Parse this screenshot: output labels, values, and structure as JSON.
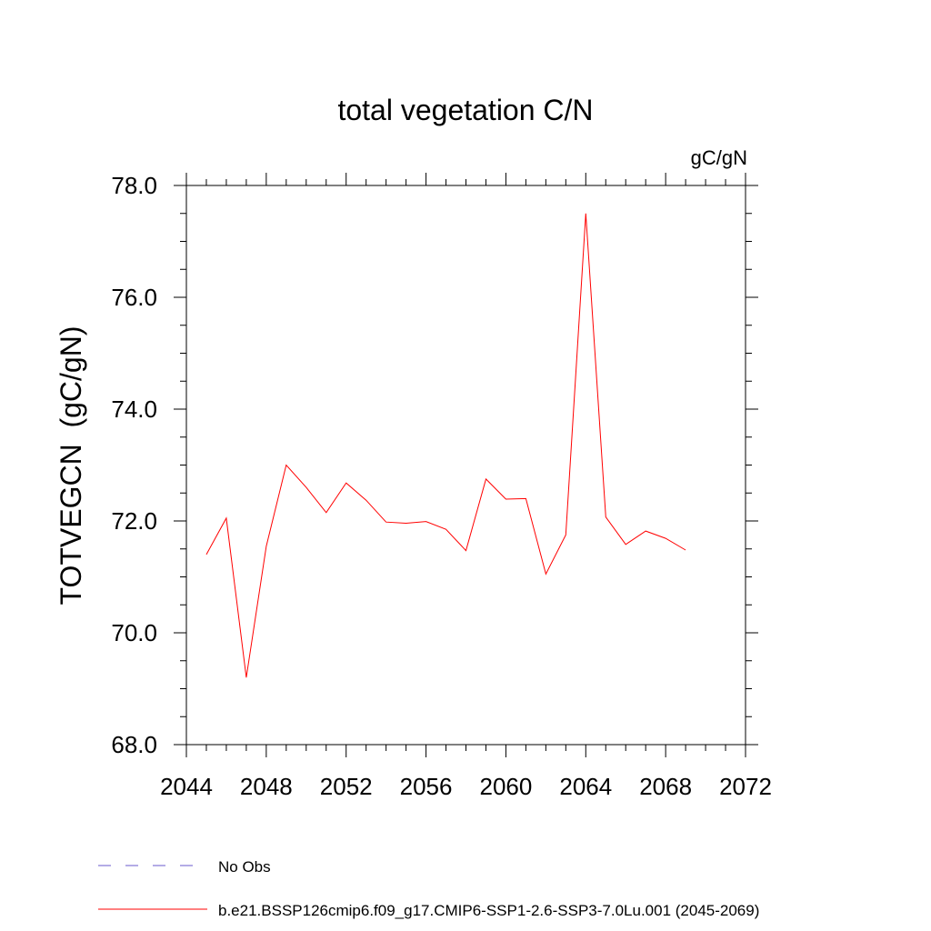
{
  "chart_data": {
    "type": "line",
    "title": "total vegetation C/N",
    "units_label": "gC/gN",
    "ylabel": "TOTVEGCN  (gC/gN)",
    "xlabel": "",
    "xlim": [
      2044,
      2072
    ],
    "ylim": [
      68.0,
      78.0
    ],
    "xticks": [
      2044,
      2048,
      2052,
      2056,
      2060,
      2064,
      2068,
      2072
    ],
    "yticks": [
      68.0,
      70.0,
      72.0,
      74.0,
      76.0,
      78.0
    ],
    "xtick_labels": [
      "2044",
      "2048",
      "2052",
      "2056",
      "2060",
      "2064",
      "2068",
      "2072"
    ],
    "ytick_labels": [
      "68.0",
      "70.0",
      "72.0",
      "74.0",
      "76.0",
      "78.0"
    ],
    "grid": false,
    "legend_position": "bottom-left",
    "series": [
      {
        "name": "No Obs",
        "color": "#6a5acd",
        "style": "dashed",
        "x": [],
        "y": []
      },
      {
        "name": "b.e21.BSSP126cmip6.f09_g17.CMIP6-SSP1-2.6-SSP3-7.0Lu.001 (2045-2069)",
        "color": "#ff0000",
        "style": "solid",
        "x": [
          2045,
          2046,
          2047,
          2048,
          2049,
          2050,
          2051,
          2052,
          2053,
          2054,
          2055,
          2056,
          2057,
          2058,
          2059,
          2060,
          2061,
          2062,
          2063,
          2064,
          2065,
          2066,
          2067,
          2068,
          2069
        ],
        "y": [
          71.4,
          72.05,
          69.2,
          71.55,
          73.0,
          72.6,
          72.15,
          72.68,
          72.37,
          71.98,
          71.96,
          71.99,
          71.85,
          71.47,
          72.75,
          72.39,
          72.4,
          71.05,
          71.75,
          77.5,
          72.07,
          71.58,
          71.82,
          71.69,
          71.48
        ]
      }
    ]
  }
}
